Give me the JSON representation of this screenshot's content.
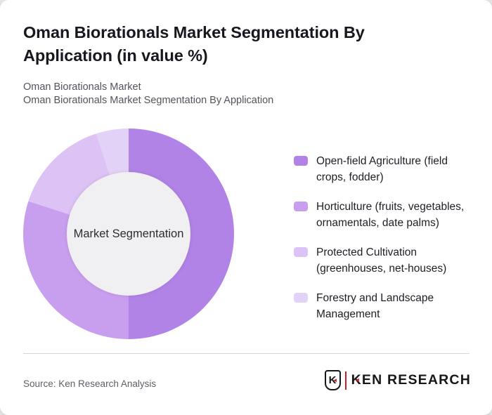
{
  "page": {
    "background": "#e6e6e6",
    "card_background": "#ffffff"
  },
  "header": {
    "title_lines": [
      "Oman Biorationals Market Segmentation By",
      "Application (in value %)"
    ],
    "subtitle_lines": [
      "Oman Biorationals Market",
      "Oman Biorationals Market Segmentation By Application"
    ]
  },
  "chart_data": {
    "type": "pie",
    "donut": true,
    "title": "Oman Biorationals Market Segmentation By Application (in value %)",
    "center_label": "Market Segmentation",
    "categories": [
      "Open-field Agriculture (field crops, fodder)",
      "Horticulture (fruits, vegetables, ornamentals, date palms)",
      "Protected Cultivation (greenhouses, net-houses)",
      "Forestry and Landscape Management"
    ],
    "values": [
      50,
      30,
      15,
      5
    ],
    "unit": "value %",
    "colors": [
      "#b183e7",
      "#c89fee",
      "#dcc2f5",
      "#e3d2f8"
    ],
    "hole_color": "#f0eff1",
    "start_angle_deg": 0,
    "direction": "clockwise",
    "legend_position": "right"
  },
  "legend": {
    "items": [
      {
        "lines": [
          "Open-field Agriculture (field",
          "crops, fodder)"
        ]
      },
      {
        "lines": [
          "Horticulture (fruits, vegetables,",
          "ornamentals, date palms)"
        ]
      },
      {
        "lines": [
          "Protected Cultivation",
          "(greenhouses, net-houses)"
        ]
      },
      {
        "lines": [
          "Forestry and Landscape",
          "Management"
        ]
      }
    ]
  },
  "footer": {
    "source": "Source: Ken Research Analysis",
    "logo_emblem_letter": "K",
    "logo_text": "KEN RESEARCH",
    "logo_red": "#c8202a"
  }
}
